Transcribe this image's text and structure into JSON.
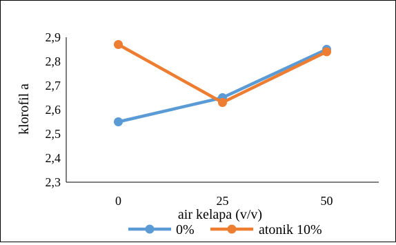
{
  "chart_data": {
    "type": "line",
    "title": "",
    "xlabel": "air kelapa (v/v)",
    "ylabel": "klorofil a",
    "categories": [
      "0",
      "25",
      "50"
    ],
    "ylim": [
      2.3,
      2.9
    ],
    "yticks": [
      "2,3",
      "2,4",
      "2,5",
      "2,6",
      "2,7",
      "2,8",
      "2,9"
    ],
    "grid": false,
    "legend_position": "bottom",
    "series": [
      {
        "name": "0%",
        "values": [
          2.55,
          2.65,
          2.85
        ],
        "color": "#5B9BD5"
      },
      {
        "name": "atonik 10%",
        "values": [
          2.87,
          2.63,
          2.84
        ],
        "color": "#ED7D31"
      }
    ]
  }
}
